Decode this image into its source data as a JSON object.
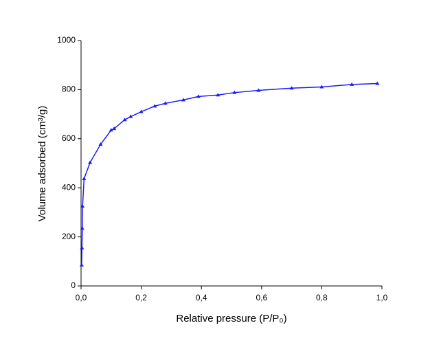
{
  "chart_data": {
    "type": "line",
    "x_label": "Relative pressure (P/P₀)",
    "y_label": "Volume adsorbed (cm³/g)",
    "series": [
      {
        "color": "#1a1aff",
        "x": [
          0.002,
          0.003,
          0.004,
          0.005,
          0.01,
          0.03,
          0.065,
          0.1,
          0.11,
          0.145,
          0.165,
          0.2,
          0.245,
          0.28,
          0.34,
          0.39,
          0.455,
          0.51,
          0.59,
          0.7,
          0.8,
          0.9,
          0.985
        ],
        "values": [
          85,
          155,
          235,
          325,
          437,
          503,
          577,
          635,
          641,
          677,
          690,
          710,
          733,
          744,
          758,
          772,
          778,
          788,
          797,
          806,
          811,
          821,
          825
        ]
      }
    ],
    "xlim": [
      0,
      1
    ],
    "xticks": [
      {
        "value": 0,
        "label": "0,0"
      },
      {
        "value": 0.2,
        "label": "0,2"
      },
      {
        "value": 0.4,
        "label": "0,4"
      },
      {
        "value": 0.6,
        "label": "0,6"
      },
      {
        "value": 0.8,
        "label": "0,8"
      },
      {
        "value": 1,
        "label": "1,0"
      }
    ],
    "ylim": [
      0,
      1000
    ],
    "yticks": [
      0,
      200,
      400,
      600,
      800,
      1000
    ],
    "grid": false
  }
}
